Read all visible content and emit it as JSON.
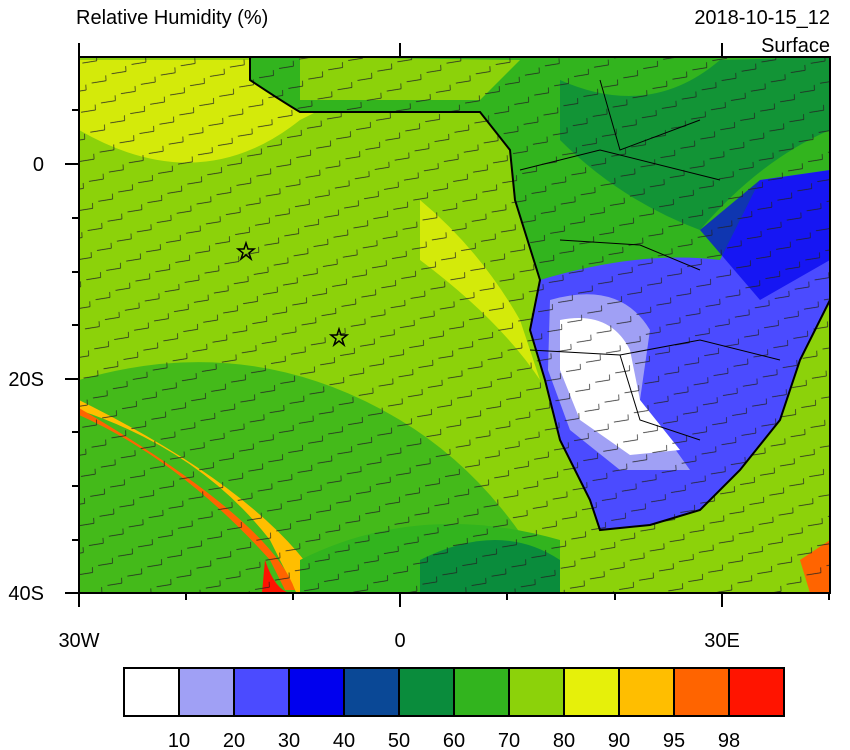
{
  "header": {
    "title": "Relative Humidity (%)",
    "time": "2018-10-15_12",
    "level": "Surface"
  },
  "map": {
    "y_labels": [
      "0",
      "20S",
      "40S"
    ],
    "x_labels": [
      "30W",
      "0",
      "30E"
    ]
  },
  "colorbar": {
    "colors": [
      "#ffffff",
      "#a0a0f5",
      "#4b4bff",
      "#0000ee",
      "#0a4896",
      "#0a8c3c",
      "#32b41e",
      "#8cd20a",
      "#e6f00a",
      "#ffbe00",
      "#ff6400",
      "#ff1400"
    ],
    "labels": [
      "10",
      "20",
      "30",
      "40",
      "50",
      "60",
      "70",
      "80",
      "90",
      "95",
      "98"
    ]
  }
}
